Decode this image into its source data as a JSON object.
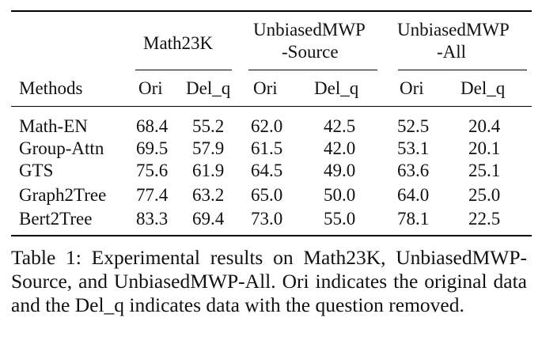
{
  "table": {
    "groups": [
      {
        "title_lines": [
          "Math23K"
        ]
      },
      {
        "title_lines": [
          "UnbiasedMWP",
          "-Source"
        ]
      },
      {
        "title_lines": [
          "UnbiasedMWP",
          "-All"
        ]
      }
    ],
    "methods_header": "Methods",
    "sub_headers": [
      "Ori",
      "Del_q",
      "Ori",
      "Del_q",
      "Ori",
      "Del_q"
    ],
    "rows": [
      {
        "method": "Math-EN",
        "values": [
          "68.4",
          "55.2",
          "62.0",
          "42.5",
          "52.5",
          "20.4"
        ]
      },
      {
        "method": "Group-Attn",
        "values": [
          "69.5",
          "57.9",
          "61.5",
          "42.0",
          "53.1",
          "20.1"
        ]
      },
      {
        "method": "GTS",
        "values": [
          "75.6",
          "61.9",
          "64.5",
          "49.0",
          "63.6",
          "25.1"
        ]
      },
      {
        "method": "Graph2Tree",
        "values": [
          "77.4",
          "63.2",
          "65.0",
          "50.0",
          "64.0",
          "25.0"
        ]
      },
      {
        "method": "Bert2Tree",
        "values": [
          "83.3",
          "69.4",
          "73.0",
          "55.0",
          "78.1",
          "22.5"
        ]
      }
    ]
  },
  "caption": "Table 1: Experimental results on Math23K, UnbiasedMWP-Source, and UnbiasedMWP-All. Ori indicates the original data and the Del_q indicates data with the question removed."
}
